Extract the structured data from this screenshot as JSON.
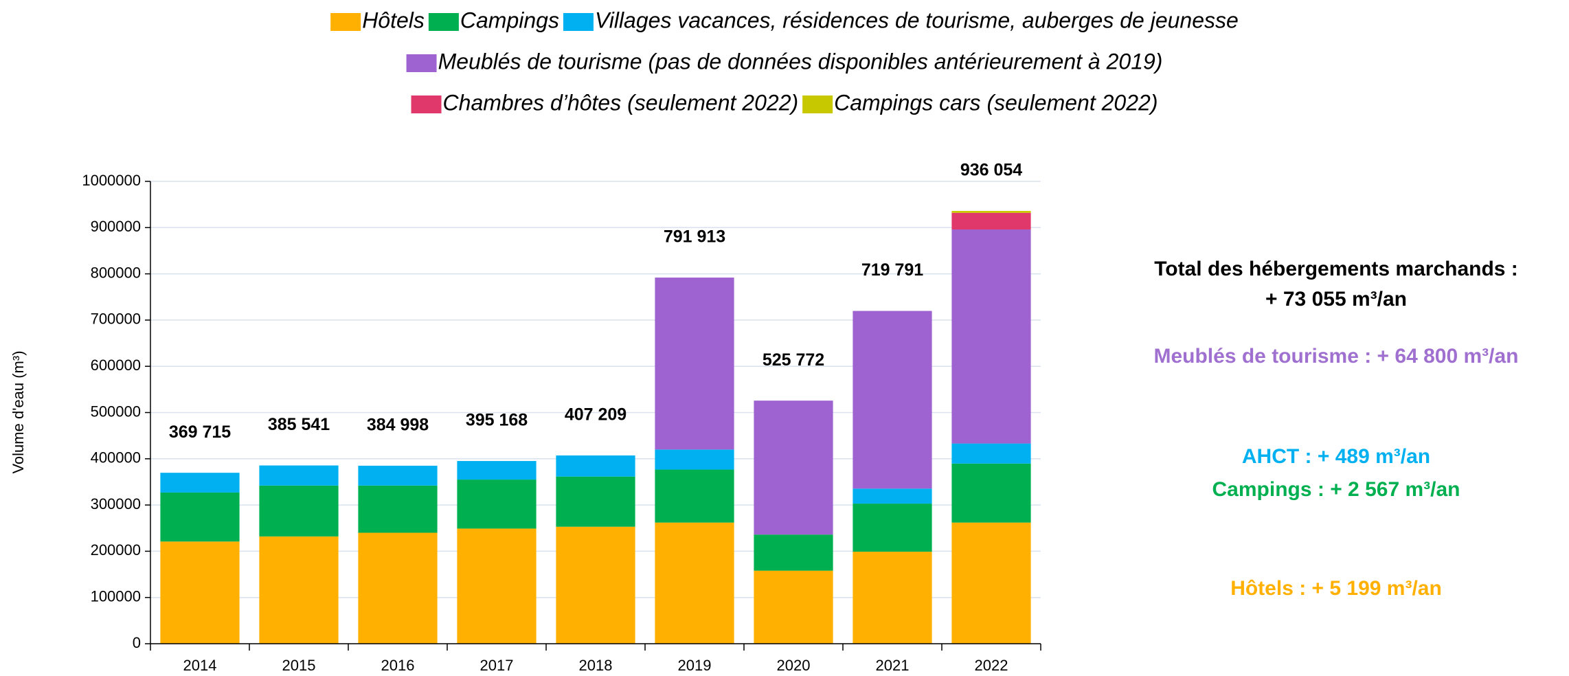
{
  "chart_data": {
    "type": "stacked_bar",
    "y_axis_label": "Volume d'eau (m³)",
    "categories": [
      "2014",
      "2015",
      "2016",
      "2017",
      "2018",
      "2019",
      "2020",
      "2021",
      "2022"
    ],
    "series": [
      {
        "name": "Hôtels",
        "color": "#FFB000",
        "values": [
          221000,
          232000,
          240000,
          249000,
          253000,
          262000,
          158000,
          199000,
          262000
        ]
      },
      {
        "name": "Campings",
        "color": "#00B050",
        "values": [
          106000,
          110000,
          102000,
          106000,
          108500,
          114600,
          78000,
          104000,
          127600
        ]
      },
      {
        "name": "Villages vacances, résidences de tourisme, auberges de jeunesse",
        "color": "#00B0F0",
        "values": [
          42715,
          43541,
          42998,
          40168,
          45709,
          43400,
          0,
          32500,
          43400
        ]
      },
      {
        "name": "Meublés de tourisme (pas de données disponibles antérieurement à 2019)",
        "color": "#9E63D0",
        "values": [
          null,
          null,
          null,
          null,
          null,
          371913,
          289772,
          384291,
          463000
        ]
      },
      {
        "name": "Chambres d’hôtes (seulement 2022)",
        "color": "#E0386A",
        "values": [
          null,
          null,
          null,
          null,
          null,
          null,
          null,
          null,
          36000
        ]
      },
      {
        "name": "Campings cars (seulement 2022)",
        "color": "#C8C800",
        "values": [
          null,
          null,
          null,
          null,
          null,
          null,
          null,
          null,
          4054
        ]
      }
    ],
    "totals": {
      "values": [
        369715,
        385541,
        384998,
        395168,
        407209,
        791913,
        525772,
        719791,
        936054
      ],
      "value_labels": [
        "369 715",
        "385 541",
        "384 998",
        "395 168",
        "407 209",
        "791 913",
        "525 772",
        "719 791",
        "936 054"
      ]
    },
    "ylim": [
      0,
      1000000
    ],
    "yticks": [
      0,
      100000,
      200000,
      300000,
      400000,
      500000,
      600000,
      700000,
      800000,
      900000,
      1000000
    ],
    "grid": true,
    "annotations": [
      {
        "text": "Total des hébergements marchands :",
        "color": "#000000"
      },
      {
        "text": "+ 73 055 m³/an",
        "color": "#000000"
      },
      {
        "text": "Meublés de tourisme : + 64 800 m³/an",
        "color": "#A070D0"
      },
      {
        "text": "AHCT : + 489 m³/an",
        "color": "#00B0F0"
      },
      {
        "text": "Campings : + 2 567 m³/an",
        "color": "#00B050"
      },
      {
        "text": "Hôtels : + 5 199 m³/an",
        "color": "#FFB000"
      }
    ]
  }
}
